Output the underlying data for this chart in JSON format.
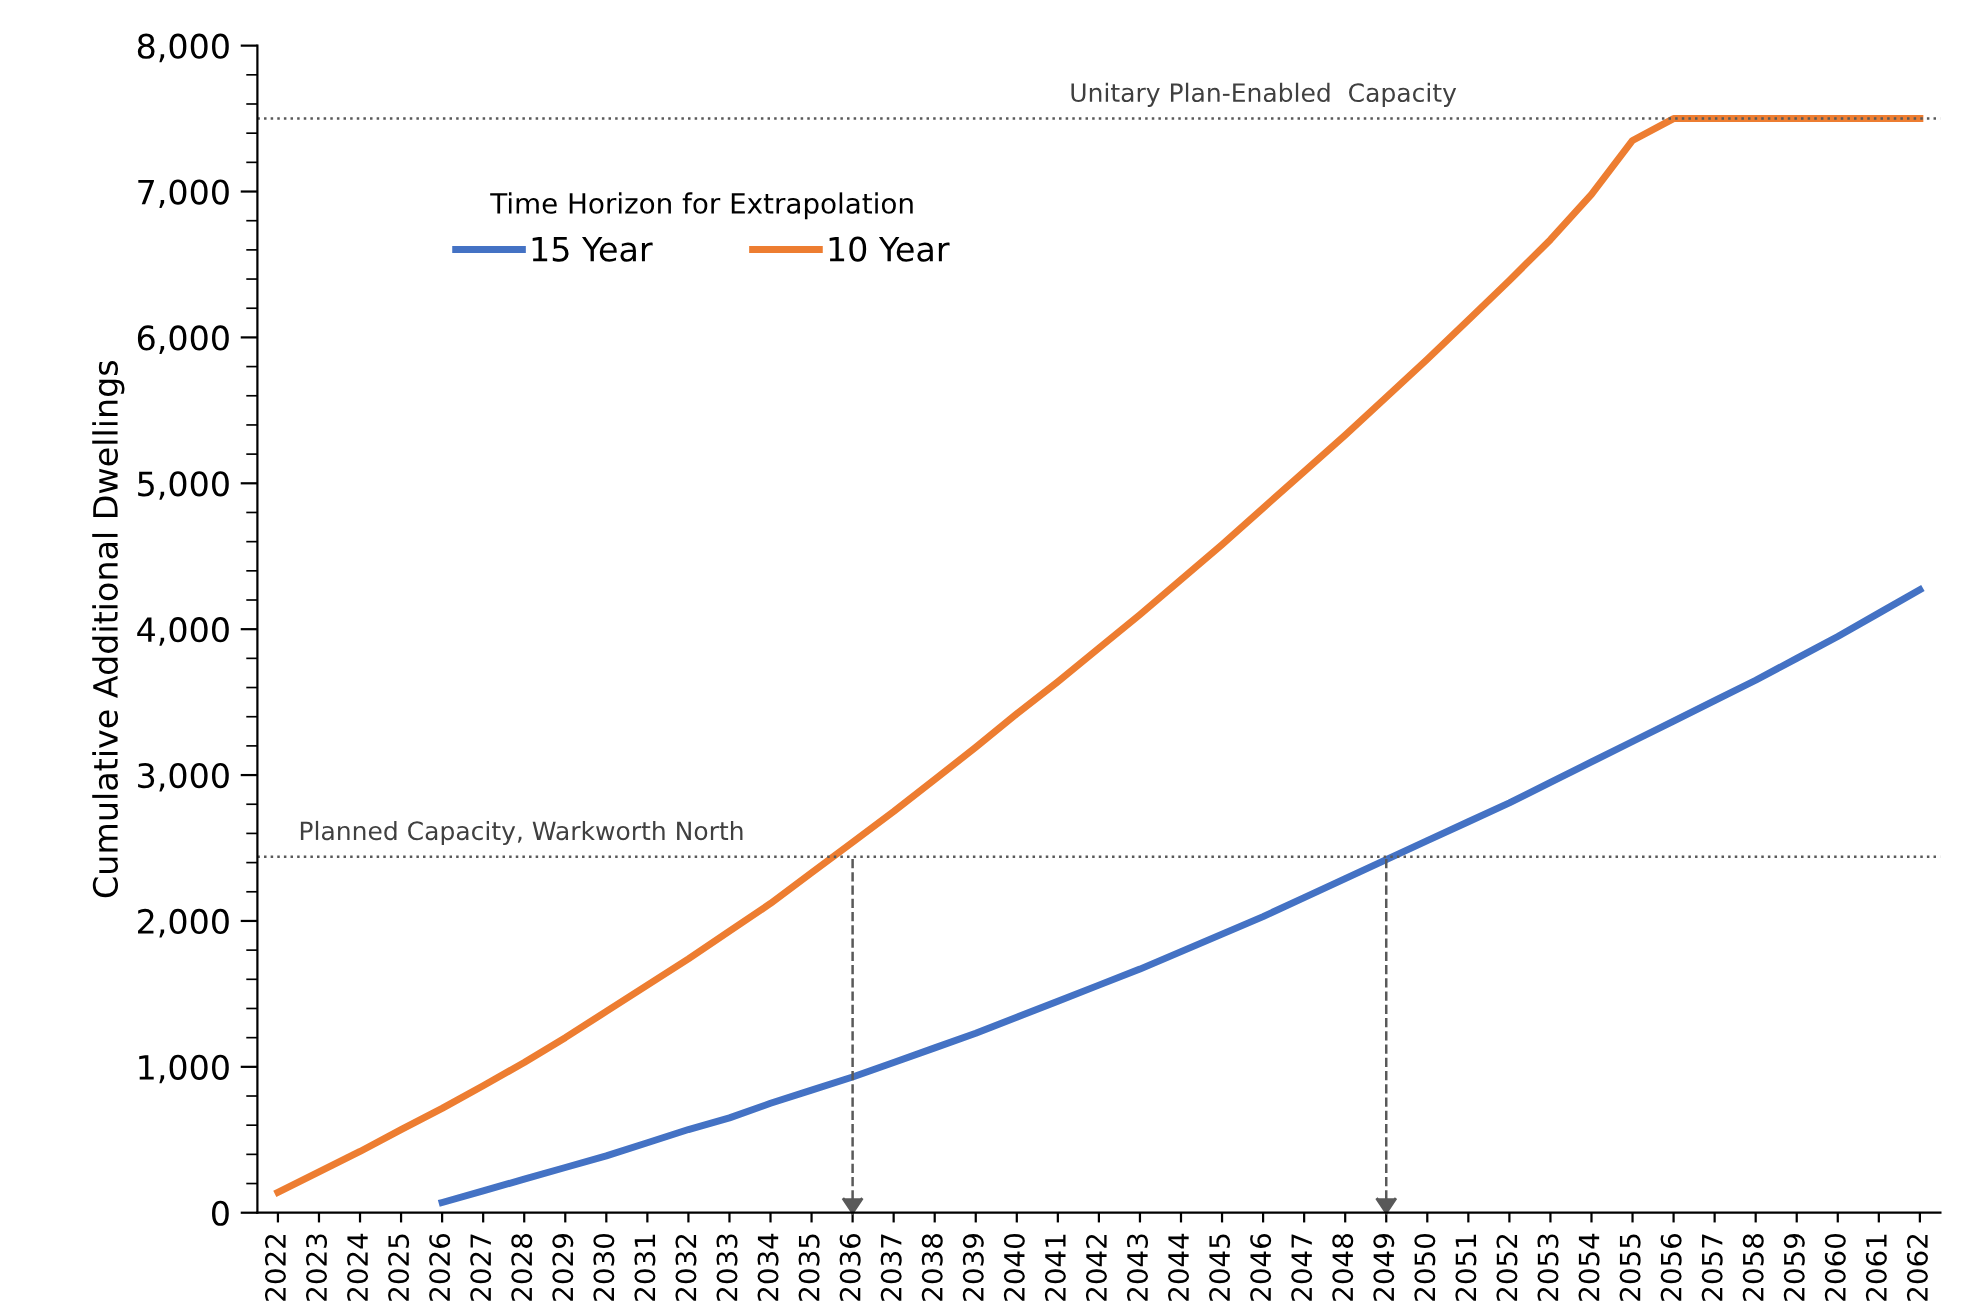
{
  "chart_data": {
    "type": "line",
    "ylabel": "Cumulative Additional Dwellings",
    "categories": [
      "2022",
      "2023",
      "2024",
      "2025",
      "2026",
      "2027",
      "2028",
      "2029",
      "2030",
      "2031",
      "2032",
      "2033",
      "2034",
      "2035",
      "2036",
      "2037",
      "2038",
      "2039",
      "2040",
      "2041",
      "2042",
      "2043",
      "2044",
      "2045",
      "2046",
      "2047",
      "2048",
      "2049",
      "2050",
      "2051",
      "2052",
      "2053",
      "2054",
      "2055",
      "2056",
      "2057",
      "2058",
      "2059",
      "2060",
      "2061",
      "2062"
    ],
    "series": [
      {
        "name": "15 Year",
        "color": "#4472c4",
        "values": [
          null,
          null,
          null,
          null,
          70,
          150,
          230,
          310,
          390,
          480,
          570,
          650,
          750,
          840,
          930,
          1030,
          1130,
          1230,
          1340,
          1450,
          1560,
          1670,
          1790,
          1910,
          2030,
          2160,
          2290,
          2420,
          2550,
          2680,
          2810,
          2950,
          3090,
          3230,
          3370,
          3510,
          3650,
          3800,
          3950,
          4110,
          4270
        ]
      },
      {
        "name": "10 Year",
        "color": "#ed7d31",
        "values": [
          140,
          280,
          420,
          570,
          715,
          870,
          1030,
          1200,
          1380,
          1560,
          1740,
          1930,
          2120,
          2330,
          2540,
          2750,
          2970,
          3190,
          3420,
          3640,
          3870,
          4100,
          4340,
          4580,
          4830,
          5080,
          5330,
          5590,
          5850,
          6120,
          6390,
          6670,
          6980,
          7350,
          7500,
          7500,
          7500,
          7500,
          7500,
          7500,
          7500
        ]
      }
    ],
    "ylim": [
      0,
      8000
    ],
    "yticks": [
      {
        "value": 0,
        "label": "0"
      },
      {
        "value": 1000,
        "label": "1,000"
      },
      {
        "value": 2000,
        "label": "2,000"
      },
      {
        "value": 3000,
        "label": "3,000"
      },
      {
        "value": 4000,
        "label": "4,000"
      },
      {
        "value": 5000,
        "label": "5,000"
      },
      {
        "value": 6000,
        "label": "6,000"
      },
      {
        "value": 7000,
        "label": "7,000"
      },
      {
        "value": 8000,
        "label": "8,000"
      }
    ],
    "ref_lines": [
      {
        "axis": "y",
        "value": 2440,
        "label": "Planned Capacity, Warkworth North",
        "color": "#595959",
        "line_style": "dotted"
      },
      {
        "axis": "y",
        "value": 7500,
        "label": "Unitary Plan-Enabled  Capacity",
        "color": "#595959",
        "line_style": "dotted"
      },
      {
        "axis": "x",
        "value": "2036",
        "color": "#595959",
        "line_style": "dashed"
      },
      {
        "axis": "x",
        "value": "2049",
        "color": "#595959",
        "line_style": "dashed"
      }
    ],
    "legend_title": "Time Horizon for Extrapolation",
    "legend": "top left",
    "grid": false,
    "marker": "none",
    "line_style": "solid"
  }
}
